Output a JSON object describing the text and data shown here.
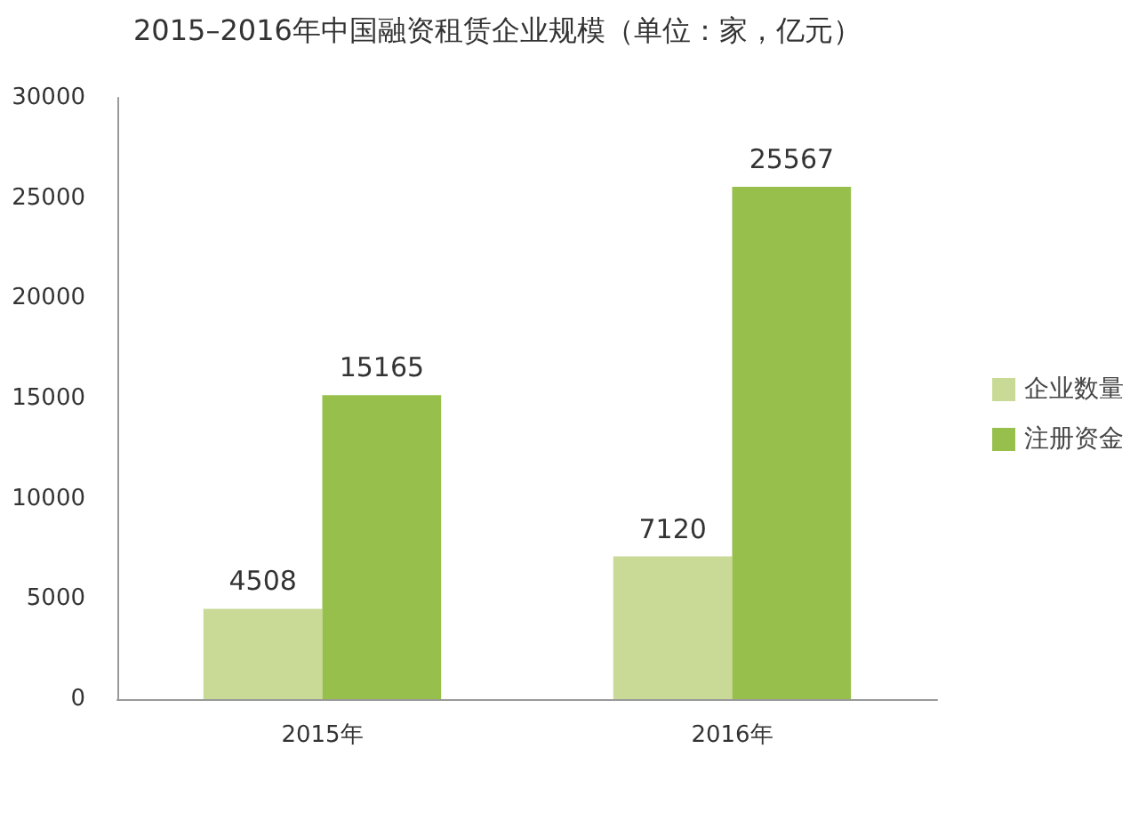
{
  "chart_data": {
    "type": "bar",
    "title": "2015–2016年中国融资租赁企业规模（单位：家，亿元）",
    "categories": [
      "2015年",
      "2016年"
    ],
    "series": [
      {
        "name": "企业数量",
        "color": "#c8da96",
        "values": [
          4508,
          7120
        ]
      },
      {
        "name": "注册资金",
        "color": "#97bf4c",
        "values": [
          15165,
          25567
        ]
      }
    ],
    "ylim": [
      0,
      30000
    ],
    "yticks": [
      0,
      5000,
      10000,
      15000,
      20000,
      25000,
      30000
    ],
    "grid": false,
    "legend": "right",
    "data_labels": true
  }
}
